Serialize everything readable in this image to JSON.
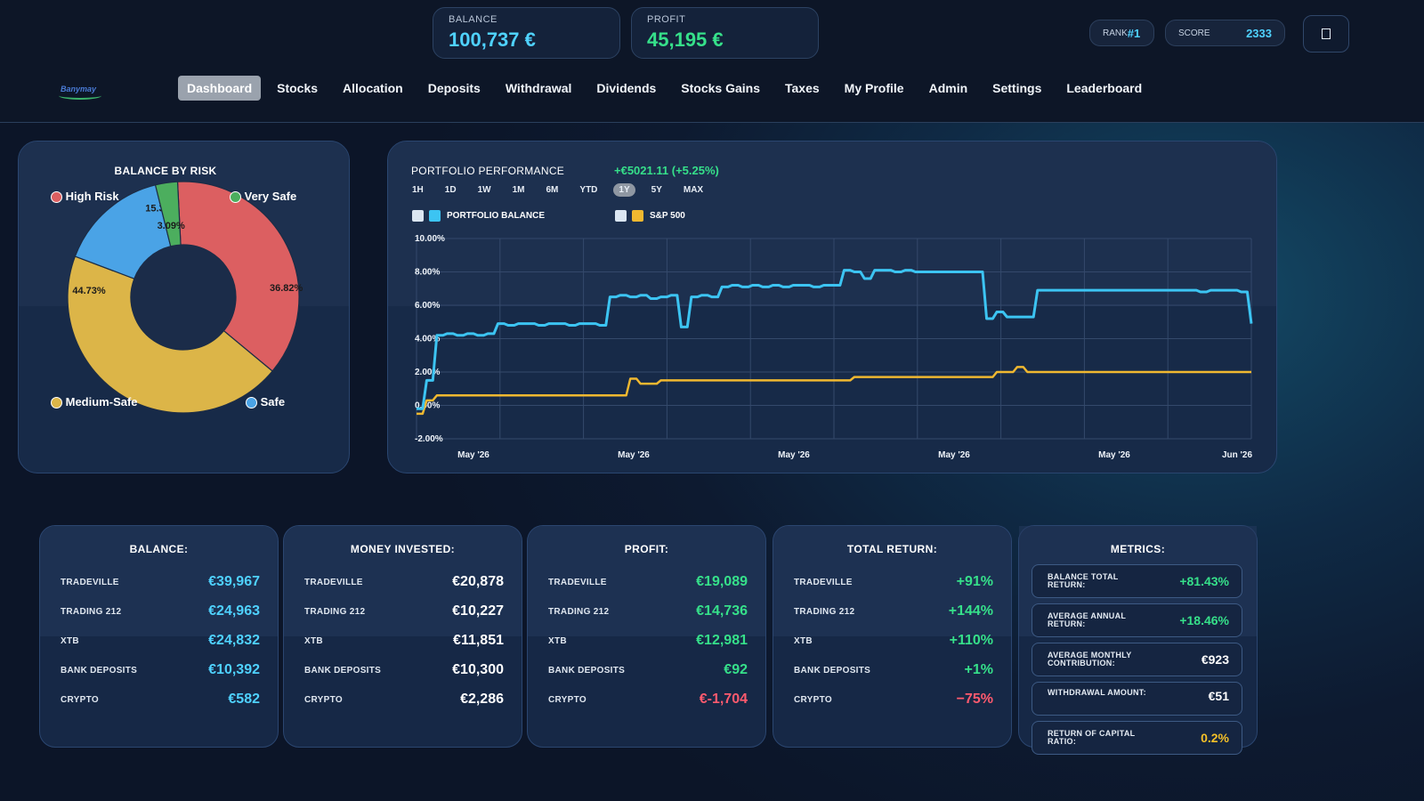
{
  "header": {
    "balance_label": "BALANCE",
    "balance_value": "100,737 €",
    "profit_label": "PROFIT",
    "profit_value": "45,195 €",
    "rank_label": "RANK",
    "rank_value": "#1",
    "score_label": "SCORE",
    "score_value": "2333",
    "menu_icon": "square-icon",
    "logo_text": "Banymay"
  },
  "nav": [
    {
      "label": "Dashboard",
      "active": true
    },
    {
      "label": "Stocks"
    },
    {
      "label": "Allocation"
    },
    {
      "label": "Deposits"
    },
    {
      "label": "Withdrawal"
    },
    {
      "label": "Dividends"
    },
    {
      "label": "Stocks Gains"
    },
    {
      "label": "Taxes"
    },
    {
      "label": "My Profile"
    },
    {
      "label": "Admin"
    },
    {
      "label": "Settings"
    },
    {
      "label": "Leaderboard"
    }
  ],
  "risk_panel": {
    "title": "BALANCE BY RISK",
    "legend": {
      "high_risk": "High Risk",
      "very_safe": "Very Safe",
      "medium_safe": "Medium-Safe",
      "safe": "Safe"
    }
  },
  "performance": {
    "title": "PORTFOLIO PERFORMANCE",
    "change": "+€5021.11",
    "change_pct": "(+5.25%)",
    "ranges": [
      "1H",
      "1D",
      "1W",
      "1M",
      "6M",
      "YTD",
      "1Y",
      "5Y",
      "MAX"
    ],
    "active_range": "1Y",
    "legend_portfolio": "PORTFOLIO BALANCE",
    "legend_sp": "S&P 500"
  },
  "colors": {
    "cyan": "#4fd2ff",
    "green": "#36e08a",
    "red": "#ff5a6e",
    "yellow": "#f5c028",
    "portfolio_line": "#3cc4f2",
    "sp_line": "#f0b830",
    "pie_high_risk": "#dc5f61",
    "pie_very_safe": "#4cae5e",
    "pie_safe": "#4aa3e6",
    "pie_medium_safe": "#dcb548"
  },
  "chart_data": [
    {
      "type": "pie",
      "title": "BALANCE BY RISK",
      "categories": [
        "High Risk",
        "Medium-Safe",
        "Safe",
        "Very Safe"
      ],
      "values": [
        36.82,
        44.73,
        15.37,
        3.09
      ],
      "data_labels": [
        "36.82%",
        "44.73%",
        "15.37%",
        "3.09%"
      ],
      "donut": true
    },
    {
      "type": "line",
      "title": "PORTFOLIO PERFORMANCE",
      "x_ticks": [
        "May '26",
        "May '26",
        "May '26",
        "May '26",
        "May '26",
        "Jun '26"
      ],
      "y_ticks": [
        "10.00%",
        "8.00%",
        "6.00%",
        "4.00%",
        "2.00%",
        "0.00%",
        "-2.00%"
      ],
      "ylim": [
        -2,
        10
      ],
      "series": [
        {
          "name": "PORTFOLIO BALANCE",
          "values": [
            -0.2,
            1.5,
            4.2,
            4.3,
            4.2,
            4.3,
            4.2,
            4.3,
            4.9,
            4.8,
            4.9,
            4.9,
            4.8,
            4.9,
            4.9,
            4.8,
            4.9,
            4.9,
            4.8,
            6.5,
            6.6,
            6.5,
            6.6,
            6.4,
            6.5,
            6.6,
            4.7,
            6.5,
            6.6,
            6.5,
            7.1,
            7.2,
            7.1,
            7.2,
            7.1,
            7.2,
            7.1,
            7.2,
            7.2,
            7.1,
            7.2,
            7.2,
            8.1,
            8.0,
            7.6,
            8.1,
            8.1,
            8.0,
            8.1,
            8.0,
            8.0,
            8.0,
            8.0,
            8.0,
            8.0,
            8.0,
            5.2,
            5.6,
            5.3,
            5.3,
            5.3,
            6.9,
            6.9,
            6.9,
            6.9,
            6.9,
            6.9,
            6.9,
            6.9,
            6.9,
            6.9,
            6.9,
            6.9,
            6.9,
            6.9,
            6.9,
            6.9,
            6.8,
            6.9,
            6.9,
            6.9,
            6.8,
            4.9
          ]
        },
        {
          "name": "S&P 500",
          "values": [
            -0.5,
            0.3,
            0.6,
            0.6,
            0.6,
            0.6,
            0.6,
            0.6,
            0.6,
            0.6,
            0.6,
            0.6,
            0.6,
            0.6,
            0.6,
            0.6,
            0.6,
            0.6,
            0.6,
            0.6,
            0.6,
            1.6,
            1.3,
            1.3,
            1.5,
            1.5,
            1.5,
            1.5,
            1.5,
            1.5,
            1.5,
            1.5,
            1.5,
            1.5,
            1.5,
            1.5,
            1.5,
            1.5,
            1.5,
            1.5,
            1.5,
            1.5,
            1.5,
            1.7,
            1.7,
            1.7,
            1.7,
            1.7,
            1.7,
            1.7,
            1.7,
            1.7,
            1.7,
            1.7,
            1.7,
            1.7,
            1.7,
            2.0,
            2.0,
            2.3,
            2.0,
            2.0,
            2.0,
            2.0,
            2.0,
            2.0,
            2.0,
            2.0,
            2.0,
            2.0,
            2.0,
            2.0,
            2.0,
            2.0,
            2.0,
            2.0,
            2.0,
            2.0,
            2.0,
            2.0,
            2.0,
            2.0,
            2.0
          ]
        }
      ]
    }
  ],
  "cards": {
    "balance": {
      "title": "BALANCE:",
      "rows": [
        {
          "label": "TRADEVILLE",
          "value": "€39,967"
        },
        {
          "label": "TRADING 212",
          "value": "€24,963"
        },
        {
          "label": "XTB",
          "value": "€24,832"
        },
        {
          "label": "BANK DEPOSITS",
          "value": "€10,392"
        },
        {
          "label": "CRYPTO",
          "value": "€582"
        }
      ]
    },
    "invested": {
      "title": "MONEY INVESTED:",
      "rows": [
        {
          "label": "TRADEVILLE",
          "value": "€20,878"
        },
        {
          "label": "TRADING 212",
          "value": "€10,227"
        },
        {
          "label": "XTB",
          "value": "€11,851"
        },
        {
          "label": "BANK DEPOSITS",
          "value": "€10,300"
        },
        {
          "label": "CRYPTO",
          "value": "€2,286"
        }
      ]
    },
    "profit": {
      "title": "PROFIT:",
      "rows": [
        {
          "label": "TRADEVILLE",
          "value": "€19,089"
        },
        {
          "label": "TRADING 212",
          "value": "€14,736"
        },
        {
          "label": "XTB",
          "value": "€12,981"
        },
        {
          "label": "BANK DEPOSITS",
          "value": "€92"
        },
        {
          "label": "CRYPTO",
          "value": "€-1,704"
        }
      ]
    },
    "total_return": {
      "title": "TOTAL RETURN:",
      "rows": [
        {
          "label": "TRADEVILLE",
          "value": "+91%"
        },
        {
          "label": "TRADING 212",
          "value": "+144%"
        },
        {
          "label": "XTB",
          "value": "+110%"
        },
        {
          "label": "BANK DEPOSITS",
          "value": "+1%"
        },
        {
          "label": "CRYPTO",
          "value": "−75%"
        }
      ]
    },
    "metrics": {
      "title": "METRICS:",
      "rows": [
        {
          "label": "BALANCE TOTAL RETURN:",
          "value": "+81.43%"
        },
        {
          "label": "AVERAGE ANNUAL RETURN:",
          "value": "+18.46%"
        },
        {
          "label": "AVERAGE MONTHLY CONTRIBUTION:",
          "value": "€923"
        },
        {
          "label": "WITHDRAWAL AMOUNT:",
          "value": "€51"
        },
        {
          "label": "RETURN OF CAPITAL RATIO:",
          "value": "0.2%"
        }
      ]
    }
  }
}
